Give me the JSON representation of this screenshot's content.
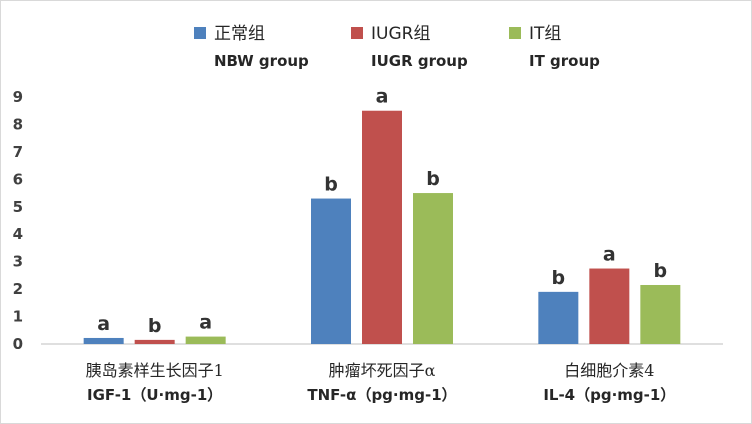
{
  "chart_data": {
    "type": "bar",
    "categories": [
      {
        "zh": "胰岛素样生长因子1",
        "en": "IGF-1（U·mg-1）"
      },
      {
        "zh": "肿瘤坏死因子α",
        "en": "TNF-α（pg·mg-1）"
      },
      {
        "zh": "白细胞介素4",
        "en": "IL-4（pg·mg-1）"
      }
    ],
    "series": [
      {
        "name": "正常组",
        "name_en": "NBW group",
        "color": "#4e81bd",
        "values": [
          0.22,
          5.3,
          1.9
        ],
        "sig": [
          "a",
          "b",
          "b"
        ]
      },
      {
        "name": "IUGR组",
        "name_en": "IUGR group",
        "color": "#c0504d",
        "values": [
          0.15,
          8.5,
          2.75
        ],
        "sig": [
          "b",
          "a",
          "a"
        ]
      },
      {
        "name": "IT组",
        "name_en": "IT group",
        "color": "#9bbb59",
        "values": [
          0.27,
          5.5,
          2.15
        ],
        "sig": [
          "a",
          "b",
          "b"
        ]
      }
    ],
    "yticks": [
      "0",
      "1",
      "2",
      "3",
      "4",
      "5",
      "6",
      "7",
      "8",
      "9"
    ],
    "ylim": [
      0,
      9
    ],
    "grid": false,
    "legend_position": "top"
  }
}
